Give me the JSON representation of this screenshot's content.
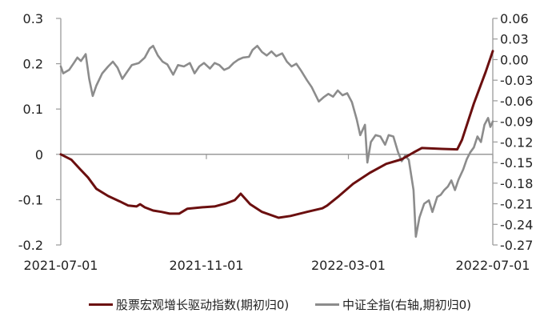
{
  "chart_data": {
    "type": "line",
    "title": "",
    "xlabel": "",
    "ylabel": "",
    "x_ticks": [
      "2021-07-01",
      "2021-11-01",
      "2022-03-01",
      "2022-07-01"
    ],
    "x_range": [
      "2021-07-01",
      "2022-07-01"
    ],
    "left_axis": {
      "ticks": [
        "0.3",
        "0.2",
        "0.1",
        "0",
        "-0.1",
        "-0.2"
      ],
      "ylim": [
        -0.2,
        0.3
      ]
    },
    "right_axis": {
      "ticks": [
        "0.06",
        "0.03",
        "0.00",
        "-0.03",
        "-0.06",
        "-0.09",
        "-0.12",
        "-0.15",
        "-0.18",
        "-0.21",
        "-0.24",
        "-0.27"
      ],
      "ylim": [
        -0.27,
        0.06
      ]
    },
    "grid": false,
    "legend_position": "bottom",
    "series": [
      {
        "name": "股票宏观增长驱动指数(期初归0)",
        "axis": "left",
        "color": "#6b0f0f",
        "points": [
          [
            "2021-07-01",
            0.0
          ],
          [
            "2021-07-10",
            -0.012
          ],
          [
            "2021-07-17",
            -0.032
          ],
          [
            "2021-07-24",
            -0.051
          ],
          [
            "2021-07-31",
            -0.076
          ],
          [
            "2021-08-10",
            -0.092
          ],
          [
            "2021-08-20",
            -0.104
          ],
          [
            "2021-08-27",
            -0.113
          ],
          [
            "2021-09-03",
            -0.115
          ],
          [
            "2021-09-06",
            -0.11
          ],
          [
            "2021-09-10",
            -0.117
          ],
          [
            "2021-09-17",
            -0.124
          ],
          [
            "2021-09-24",
            -0.127
          ],
          [
            "2021-10-01",
            -0.131
          ],
          [
            "2021-10-09",
            -0.131
          ],
          [
            "2021-10-16",
            -0.12
          ],
          [
            "2021-10-28",
            -0.117
          ],
          [
            "2021-11-08",
            -0.115
          ],
          [
            "2021-11-18",
            -0.108
          ],
          [
            "2021-11-25",
            -0.101
          ],
          [
            "2021-11-30",
            -0.087
          ],
          [
            "2021-12-08",
            -0.11
          ],
          [
            "2021-12-18",
            -0.127
          ],
          [
            "2022-01-01",
            -0.14
          ],
          [
            "2022-01-11",
            -0.136
          ],
          [
            "2022-01-25",
            -0.127
          ],
          [
            "2022-02-07",
            -0.119
          ],
          [
            "2022-02-11",
            -0.113
          ],
          [
            "2022-02-21",
            -0.092
          ],
          [
            "2022-03-05",
            -0.065
          ],
          [
            "2022-03-19",
            -0.041
          ],
          [
            "2022-04-02",
            -0.021
          ],
          [
            "2022-04-15",
            -0.011
          ],
          [
            "2022-04-25",
            0.004
          ],
          [
            "2022-05-02",
            0.014
          ],
          [
            "2022-05-19",
            0.012
          ],
          [
            "2022-06-01",
            0.011
          ],
          [
            "2022-06-05",
            0.032
          ],
          [
            "2022-06-15",
            0.112
          ],
          [
            "2022-06-25",
            0.182
          ],
          [
            "2022-07-01",
            0.228
          ]
        ]
      },
      {
        "name": "中证全指(右轴,期初归0)",
        "axis": "right",
        "color": "#8c8c8c",
        "points": [
          [
            "2021-07-01",
            -0.01
          ],
          [
            "2021-07-03",
            -0.02
          ],
          [
            "2021-07-08",
            -0.015
          ],
          [
            "2021-07-12",
            -0.005
          ],
          [
            "2021-07-15",
            0.003
          ],
          [
            "2021-07-18",
            -0.002
          ],
          [
            "2021-07-22",
            0.008
          ],
          [
            "2021-07-25",
            -0.028
          ],
          [
            "2021-07-28",
            -0.053
          ],
          [
            "2021-07-31",
            -0.038
          ],
          [
            "2021-08-05",
            -0.02
          ],
          [
            "2021-08-10",
            -0.01
          ],
          [
            "2021-08-14",
            -0.003
          ],
          [
            "2021-08-18",
            -0.012
          ],
          [
            "2021-08-22",
            -0.028
          ],
          [
            "2021-08-26",
            -0.018
          ],
          [
            "2021-08-30",
            -0.008
          ],
          [
            "2021-09-05",
            -0.005
          ],
          [
            "2021-09-10",
            0.003
          ],
          [
            "2021-09-14",
            0.016
          ],
          [
            "2021-09-17",
            0.02
          ],
          [
            "2021-09-21",
            0.006
          ],
          [
            "2021-09-25",
            -0.003
          ],
          [
            "2021-09-29",
            -0.007
          ],
          [
            "2021-10-04",
            -0.022
          ],
          [
            "2021-10-08",
            -0.008
          ],
          [
            "2021-10-13",
            -0.01
          ],
          [
            "2021-10-18",
            -0.005
          ],
          [
            "2021-10-22",
            -0.02
          ],
          [
            "2021-10-26",
            -0.01
          ],
          [
            "2021-10-30",
            -0.005
          ],
          [
            "2021-11-04",
            -0.013
          ],
          [
            "2021-11-08",
            -0.005
          ],
          [
            "2021-11-12",
            -0.008
          ],
          [
            "2021-11-16",
            -0.015
          ],
          [
            "2021-11-20",
            -0.012
          ],
          [
            "2021-11-24",
            -0.005
          ],
          [
            "2021-11-28",
            0.0
          ],
          [
            "2021-12-02",
            0.003
          ],
          [
            "2021-12-07",
            0.004
          ],
          [
            "2021-12-10",
            0.014
          ],
          [
            "2021-12-14",
            0.02
          ],
          [
            "2021-12-18",
            0.011
          ],
          [
            "2021-12-22",
            0.006
          ],
          [
            "2021-12-26",
            0.012
          ],
          [
            "2021-12-30",
            0.005
          ],
          [
            "2022-01-04",
            0.009
          ],
          [
            "2022-01-08",
            -0.003
          ],
          [
            "2022-01-12",
            -0.01
          ],
          [
            "2022-01-16",
            -0.006
          ],
          [
            "2022-01-20",
            -0.016
          ],
          [
            "2022-01-25",
            -0.03
          ],
          [
            "2022-01-29",
            -0.04
          ],
          [
            "2022-02-04",
            -0.061
          ],
          [
            "2022-02-08",
            -0.055
          ],
          [
            "2022-02-12",
            -0.05
          ],
          [
            "2022-02-16",
            -0.054
          ],
          [
            "2022-02-20",
            -0.045
          ],
          [
            "2022-02-24",
            -0.052
          ],
          [
            "2022-02-28",
            -0.049
          ],
          [
            "2022-03-04",
            -0.062
          ],
          [
            "2022-03-08",
            -0.087
          ],
          [
            "2022-03-11",
            -0.11
          ],
          [
            "2022-03-15",
            -0.095
          ],
          [
            "2022-03-17",
            -0.15
          ],
          [
            "2022-03-20",
            -0.12
          ],
          [
            "2022-03-24",
            -0.11
          ],
          [
            "2022-03-28",
            -0.112
          ],
          [
            "2022-04-01",
            -0.124
          ],
          [
            "2022-04-04",
            -0.11
          ],
          [
            "2022-04-08",
            -0.112
          ],
          [
            "2022-04-12",
            -0.135
          ],
          [
            "2022-04-15",
            -0.148
          ],
          [
            "2022-04-18",
            -0.14
          ],
          [
            "2022-04-21",
            -0.146
          ],
          [
            "2022-04-25",
            -0.19
          ],
          [
            "2022-04-27",
            -0.258
          ],
          [
            "2022-04-30",
            -0.23
          ],
          [
            "2022-05-04",
            -0.21
          ],
          [
            "2022-05-08",
            -0.205
          ],
          [
            "2022-05-11",
            -0.222
          ],
          [
            "2022-05-15",
            -0.2
          ],
          [
            "2022-05-18",
            -0.197
          ],
          [
            "2022-05-21",
            -0.19
          ],
          [
            "2022-05-24",
            -0.185
          ],
          [
            "2022-05-27",
            -0.176
          ],
          [
            "2022-05-30",
            -0.19
          ],
          [
            "2022-06-02",
            -0.175
          ],
          [
            "2022-06-06",
            -0.16
          ],
          [
            "2022-06-09",
            -0.145
          ],
          [
            "2022-06-12",
            -0.135
          ],
          [
            "2022-06-15",
            -0.128
          ],
          [
            "2022-06-18",
            -0.112
          ],
          [
            "2022-06-21",
            -0.12
          ],
          [
            "2022-06-24",
            -0.095
          ],
          [
            "2022-06-27",
            -0.085
          ],
          [
            "2022-06-29",
            -0.098
          ],
          [
            "2022-07-01",
            -0.09
          ]
        ]
      }
    ]
  },
  "axes": {
    "left_ticks": [
      "0.3",
      "0.2",
      "0.1",
      "0",
      "-0.1",
      "-0.2"
    ],
    "right_ticks": [
      "0.06",
      "0.03",
      "0.00",
      "-0.03",
      "-0.06",
      "-0.09",
      "-0.12",
      "-0.15",
      "-0.18",
      "-0.21",
      "-0.24",
      "-0.27"
    ],
    "x_ticks": [
      "2021-07-01",
      "2021-11-01",
      "2022-03-01",
      "2022-07-01"
    ]
  },
  "legend": {
    "items": [
      {
        "label": "股票宏观增长驱动指数(期初归0)",
        "color": "#6b0f0f"
      },
      {
        "label": "中证全指(右轴,期初归0)",
        "color": "#8c8c8c"
      }
    ]
  }
}
